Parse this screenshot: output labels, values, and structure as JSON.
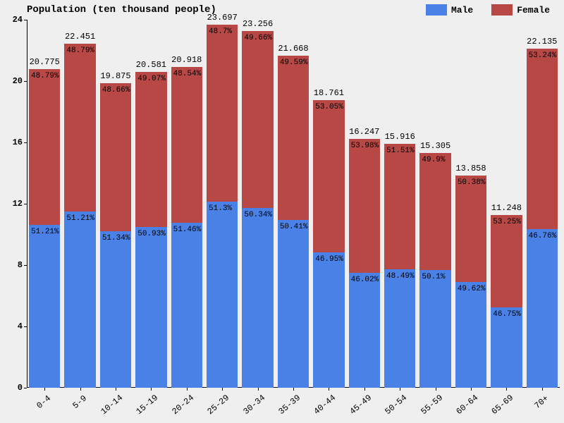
{
  "chart": {
    "type": "stacked-bar",
    "title": "Population (ten thousand people)",
    "title_fontsize": 14,
    "label_fontsize": 12,
    "pct_fontsize": 11,
    "font_family": "Courier New",
    "background_color": "#efefef",
    "axis_color": "#000000",
    "ylim": [
      0,
      24
    ],
    "yticks": [
      0,
      4,
      8,
      12,
      16,
      20,
      24
    ],
    "bar_gap_ratio": 0.12,
    "legend": {
      "position": "top-right",
      "items": [
        {
          "label": "Male",
          "color": "#4a81e6"
        },
        {
          "label": "Female",
          "color": "#b84846"
        }
      ]
    },
    "categories": [
      "0-4",
      "5-9",
      "10-14",
      "15-19",
      "20-24",
      "25-29",
      "30-34",
      "35-39",
      "40-44",
      "45-49",
      "50-54",
      "55-59",
      "60-64",
      "65-69",
      "70+"
    ],
    "series": [
      {
        "name": "Male",
        "color": "#4a81e6",
        "values": [
          10.639,
          11.497,
          10.204,
          10.482,
          10.764,
          12.157,
          11.707,
          10.923,
          8.808,
          7.477,
          7.718,
          7.668,
          6.878,
          5.258,
          10.35
        ],
        "pct_labels": [
          "51.21%",
          "51.21%",
          "51.34%",
          "50.93%",
          "51.46%",
          "51.3%",
          "50.34%",
          "50.41%",
          "46.95%",
          "46.02%",
          "48.49%",
          "50.1%",
          "49.62%",
          "46.75%",
          "46.76%"
        ]
      },
      {
        "name": "Female",
        "color": "#b84846",
        "values": [
          10.136,
          10.954,
          9.671,
          10.099,
          10.154,
          11.54,
          11.549,
          10.745,
          9.953,
          8.77,
          8.198,
          7.637,
          6.98,
          5.99,
          11.785
        ],
        "pct_labels": [
          "48.79%",
          "48.79%",
          "48.66%",
          "49.07%",
          "48.54%",
          "48.7%",
          "49.66%",
          "49.59%",
          "53.05%",
          "53.98%",
          "51.51%",
          "49.9%",
          "50.38%",
          "53.25%",
          "53.24%"
        ]
      }
    ],
    "totals": [
      20.775,
      22.451,
      19.875,
      20.581,
      20.918,
      23.697,
      23.256,
      21.668,
      18.761,
      16.247,
      15.916,
      15.305,
      13.858,
      11.248,
      22.135
    ]
  }
}
